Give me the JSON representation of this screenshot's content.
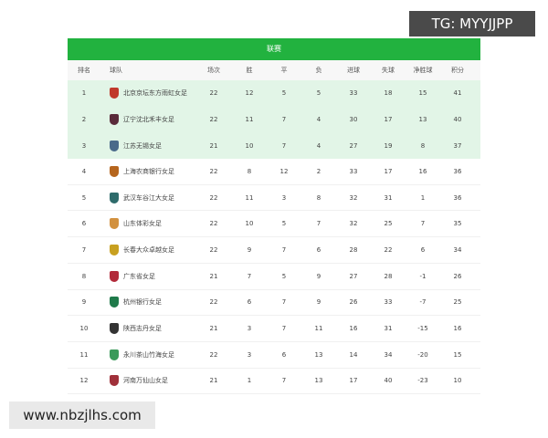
{
  "watermarks": {
    "top": "TG: MYYJJPP",
    "bottom": "www.nbzjlhs.com"
  },
  "table": {
    "title": "联赛",
    "headers": [
      "排名",
      "球队",
      "场次",
      "胜",
      "平",
      "负",
      "进球",
      "失球",
      "净胜球",
      "积分"
    ],
    "highlight_color": "#e2f5e7",
    "title_color": "#22b23f",
    "rows": [
      {
        "rank": "1",
        "team": "北京京坛东方雨虹女足",
        "logo": "#c0392b",
        "played": "22",
        "w": "12",
        "d": "5",
        "l": "5",
        "gf": "33",
        "ga": "18",
        "gd": "15",
        "pts": "41"
      },
      {
        "rank": "2",
        "team": "辽宁沈北禾丰女足",
        "logo": "#5a2a3a",
        "played": "22",
        "w": "11",
        "d": "7",
        "l": "4",
        "gf": "30",
        "ga": "17",
        "gd": "13",
        "pts": "40"
      },
      {
        "rank": "3",
        "team": "江苏无锡女足",
        "logo": "#4a6a8a",
        "played": "21",
        "w": "10",
        "d": "7",
        "l": "4",
        "gf": "27",
        "ga": "19",
        "gd": "8",
        "pts": "37"
      },
      {
        "rank": "4",
        "team": "上海农商银行女足",
        "logo": "#b5651d",
        "played": "22",
        "w": "8",
        "d": "12",
        "l": "2",
        "gf": "33",
        "ga": "17",
        "gd": "16",
        "pts": "36"
      },
      {
        "rank": "5",
        "team": "武汉车谷江大女足",
        "logo": "#2e6b6b",
        "played": "22",
        "w": "11",
        "d": "3",
        "l": "8",
        "gf": "32",
        "ga": "31",
        "gd": "1",
        "pts": "36"
      },
      {
        "rank": "6",
        "team": "山东体彩女足",
        "logo": "#d2913f",
        "played": "22",
        "w": "10",
        "d": "5",
        "l": "7",
        "gf": "32",
        "ga": "25",
        "gd": "7",
        "pts": "35"
      },
      {
        "rank": "7",
        "team": "长春大众卓越女足",
        "logo": "#c8a020",
        "played": "22",
        "w": "9",
        "d": "7",
        "l": "6",
        "gf": "28",
        "ga": "22",
        "gd": "6",
        "pts": "34"
      },
      {
        "rank": "8",
        "team": "广东省女足",
        "logo": "#b22a3a",
        "played": "21",
        "w": "7",
        "d": "5",
        "l": "9",
        "gf": "27",
        "ga": "28",
        "gd": "-1",
        "pts": "26"
      },
      {
        "rank": "9",
        "team": "杭州银行女足",
        "logo": "#1f7a4a",
        "played": "22",
        "w": "6",
        "d": "7",
        "l": "9",
        "gf": "26",
        "ga": "33",
        "gd": "-7",
        "pts": "25"
      },
      {
        "rank": "10",
        "team": "陕西志丹女足",
        "logo": "#333333",
        "played": "21",
        "w": "3",
        "d": "7",
        "l": "11",
        "gf": "16",
        "ga": "31",
        "gd": "-15",
        "pts": "16"
      },
      {
        "rank": "11",
        "team": "永川茶山竹海女足",
        "logo": "#3a9a5a",
        "played": "22",
        "w": "3",
        "d": "6",
        "l": "13",
        "gf": "14",
        "ga": "34",
        "gd": "-20",
        "pts": "15"
      },
      {
        "rank": "12",
        "team": "河南万仙山女足",
        "logo": "#a0303a",
        "played": "21",
        "w": "1",
        "d": "7",
        "l": "13",
        "gf": "17",
        "ga": "40",
        "gd": "-23",
        "pts": "10"
      }
    ]
  }
}
